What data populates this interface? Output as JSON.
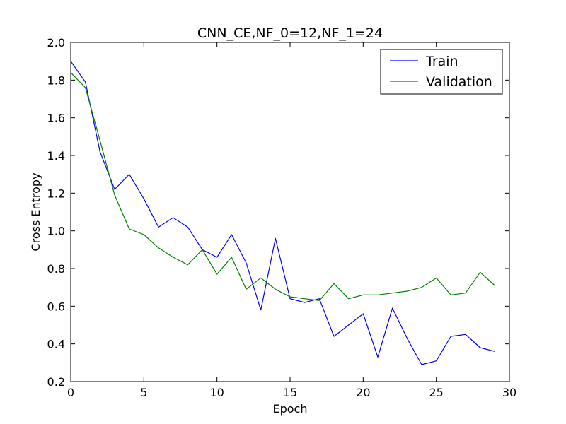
{
  "chart_data": {
    "type": "line",
    "title": "CNN_CE,NF_0=12,NF_1=24",
    "xlabel": "Epoch",
    "ylabel": "Cross Entropy",
    "xlim": [
      0,
      30
    ],
    "ylim": [
      0.2,
      2.0
    ],
    "xticks": [
      0,
      5,
      10,
      15,
      20,
      25,
      30
    ],
    "yticks": [
      0.2,
      0.4,
      0.6,
      0.8,
      1.0,
      1.2,
      1.4,
      1.6,
      1.8,
      2.0
    ],
    "xtick_labels": [
      "0",
      "5",
      "10",
      "15",
      "20",
      "25",
      "30"
    ],
    "ytick_labels": [
      "0.2",
      "0.4",
      "0.6",
      "0.8",
      "1.0",
      "1.2",
      "1.4",
      "1.6",
      "1.8",
      "2.0"
    ],
    "grid": false,
    "legend": "top-right",
    "x": [
      0,
      1,
      2,
      3,
      4,
      5,
      6,
      7,
      8,
      9,
      10,
      11,
      12,
      13,
      14,
      15,
      16,
      17,
      18,
      19,
      20,
      21,
      22,
      23,
      24,
      25,
      26,
      27,
      28,
      29
    ],
    "series": [
      {
        "name": "Train",
        "color": "#0000ff",
        "values": [
          1.9,
          1.79,
          1.42,
          1.22,
          1.3,
          1.17,
          1.02,
          1.07,
          1.02,
          0.9,
          0.86,
          0.98,
          0.83,
          0.58,
          0.96,
          0.64,
          0.62,
          0.64,
          0.44,
          0.5,
          0.56,
          0.33,
          0.59,
          0.43,
          0.29,
          0.31,
          0.44,
          0.45,
          0.38,
          0.36
        ]
      },
      {
        "name": "Validation",
        "color": "#008000",
        "values": [
          1.84,
          1.76,
          1.48,
          1.19,
          1.01,
          0.98,
          0.91,
          0.86,
          0.82,
          0.9,
          0.77,
          0.86,
          0.69,
          0.75,
          0.69,
          0.65,
          0.64,
          0.63,
          0.72,
          0.64,
          0.66,
          0.66,
          0.67,
          0.68,
          0.7,
          0.75,
          0.66,
          0.67,
          0.78,
          0.71
        ]
      }
    ]
  }
}
